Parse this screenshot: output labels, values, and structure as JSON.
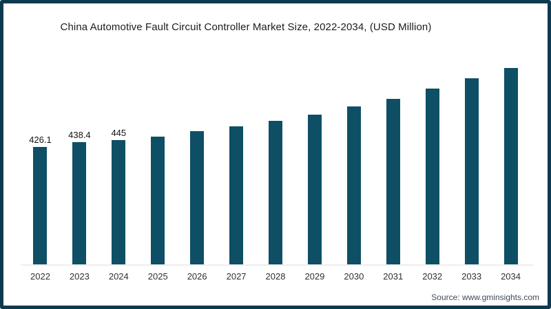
{
  "page": {
    "source": "Source: www.gminsights.com"
  },
  "chart_data": {
    "type": "bar",
    "title": "China Automotive Fault Circuit Controller Market Size, 2022-2034, (USD Million)",
    "categories": [
      "2022",
      "2023",
      "2024",
      "2025",
      "2026",
      "2027",
      "2028",
      "2029",
      "2030",
      "2031",
      "2032",
      "2033",
      "2034"
    ],
    "values": [
      426.1,
      438.4,
      445,
      454,
      468,
      483,
      498,
      515,
      536,
      558,
      585,
      615,
      643
    ],
    "data_labels": [
      "426.1",
      "438.4",
      "445",
      "",
      "",
      "",
      "",
      "",
      "",
      "",
      "",
      "",
      ""
    ],
    "xlabel": "",
    "ylabel": "",
    "ylim": [
      103,
      650
    ],
    "grid": false,
    "legend": false,
    "y_axis_visible": false,
    "bar_color": "#0e4f66",
    "baseline_color": "#ededed"
  },
  "colors": {
    "frame_border": "#0d3a50",
    "background": "#ffffff",
    "title_text": "#1b1b1b",
    "axis_text": "#2f2f2f",
    "source_text": "#3f4b5b"
  }
}
